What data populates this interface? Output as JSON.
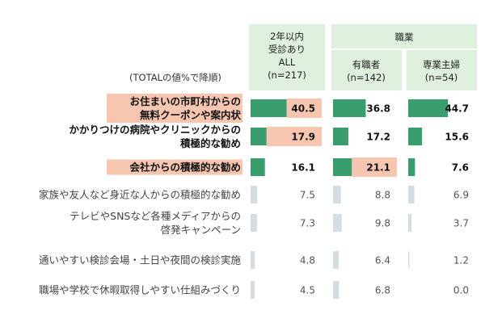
{
  "header": {
    "note": "(TOTALの値%で降順)",
    "col_all": [
      "2年以内",
      "受診あり",
      "ALL",
      "(n=217)"
    ],
    "group": "職業",
    "col_employed": [
      "有職者",
      "(n=142)"
    ],
    "col_housewife": [
      "専業主婦",
      "(n=54)"
    ]
  },
  "chart_data": {
    "type": "bar",
    "orientation": "horizontal",
    "unit": "%",
    "categories": [
      "お住まいの市町村からの無料クーポンや案内状",
      "かかりつけの病院やクリニックからの積極的な勧め",
      "会社からの積極的な勧め",
      "家族や友人など身近な人からの積極的な勧め",
      "テレビやSNSなど各種メディアからの啓発キャンペーン",
      "通いやすい検診会場・土日や夜間の検診実施",
      "職場や学校で休暇取得しやすい仕組みづくり"
    ],
    "category_lines": [
      [
        "お住まいの市町村からの",
        "無料クーポンや案内状"
      ],
      [
        "かかりつけの病院やクリニックからの",
        "積極的な勧め"
      ],
      [
        "会社からの積極的な勧め"
      ],
      [
        "家族や友人など身近な人からの積極的な勧め"
      ],
      [
        "テレビやSNSなど各種メディアからの",
        "啓発キャンペーン"
      ],
      [
        "通いやすい検診会場・土日や夜間の検診実施"
      ],
      [
        "職場や学校で休暇取得しやすい仕組みづくり"
      ]
    ],
    "series": [
      {
        "name": "2年以内受診ありALL(n=217)",
        "values": [
          40.5,
          17.9,
          16.1,
          7.5,
          7.3,
          4.8,
          4.5
        ],
        "labels": [
          "40.5",
          "17.9",
          "16.1",
          "7.5",
          "7.3",
          "4.8",
          "4.5"
        ]
      },
      {
        "name": "有職者(n=142)",
        "values": [
          36.8,
          17.2,
          21.1,
          8.8,
          9.8,
          6.4,
          6.8
        ],
        "labels": [
          "36.8",
          "17.2",
          "21.1",
          "8.8",
          "9.8",
          "6.4",
          "6.8"
        ]
      },
      {
        "name": "専業主婦(n=54)",
        "values": [
          44.7,
          15.6,
          7.6,
          6.9,
          3.7,
          1.2,
          0.0
        ],
        "labels": [
          "44.7",
          "15.6",
          "7.6",
          "6.9",
          "3.7",
          "1.2",
          "0.0"
        ]
      }
    ],
    "highlight_rows": [
      true,
      true,
      true,
      false,
      false,
      false,
      false
    ],
    "highlight_label_rows": [
      0,
      2
    ],
    "highlight_value_cells": [
      [
        0,
        0
      ],
      [
        1,
        0
      ],
      [
        2,
        1
      ]
    ],
    "colors": {
      "bar_top": "#3a9d6e",
      "bar_other": "#d3dde2",
      "header_bg": "#dff0df",
      "highlight_bg": "#f6c6b0"
    }
  }
}
